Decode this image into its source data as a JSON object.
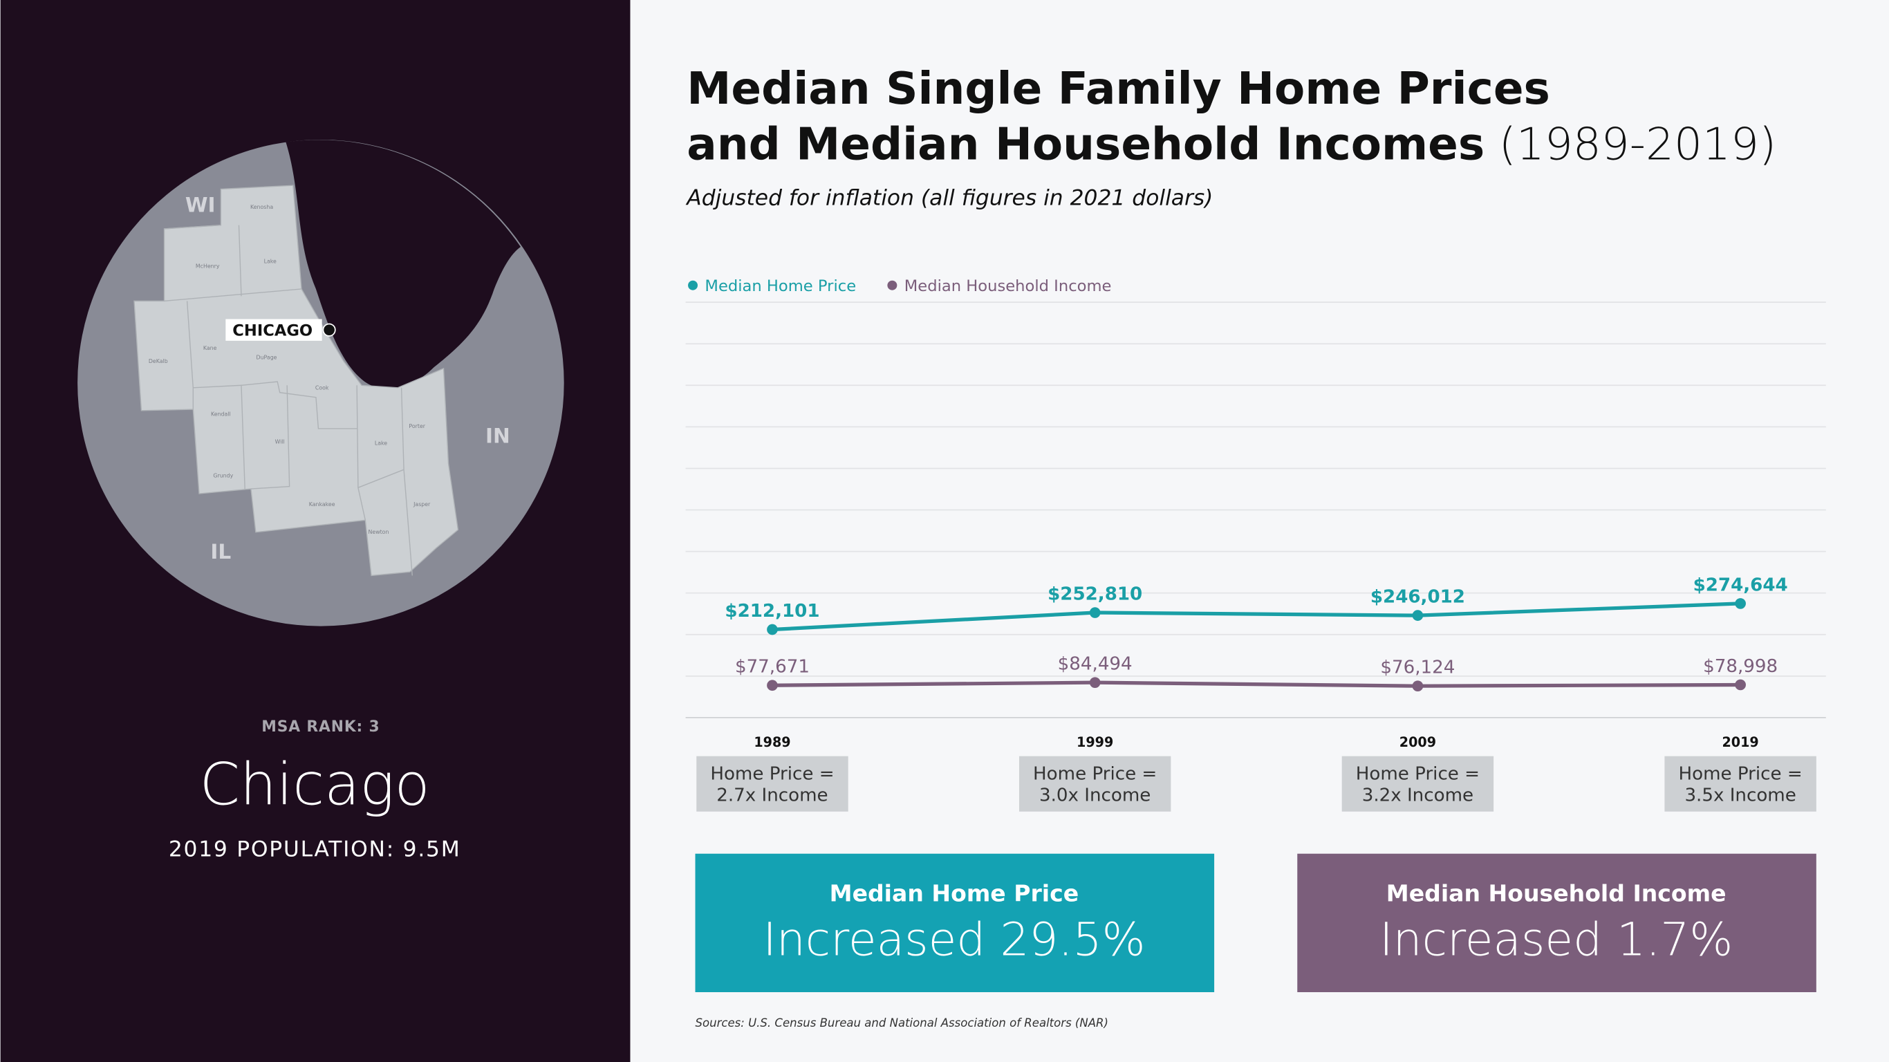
{
  "sidebar": {
    "map_labels": {
      "states": [
        "WI",
        "IL",
        "IN"
      ],
      "city": "CHICAGO",
      "counties": [
        "Kenosha",
        "McHenry",
        "Lake",
        "Kane",
        "DeKalb",
        "DuPage",
        "Cook",
        "Kendall",
        "Will",
        "Grundy",
        "Kankakee",
        "Lake",
        "Porter",
        "Jasper",
        "Newton"
      ]
    },
    "rank": "MSA RANK: 3",
    "city_name": "Chicago",
    "population": "2019 POPULATION: 9.5M"
  },
  "chart_data": {
    "type": "line",
    "title": [
      "Median Single Family Home Prices",
      "and Median Household Incomes"
    ],
    "title_suffix": "(1989-2019)",
    "subtitle": "Adjusted for inflation (all figures in 2021 dollars)",
    "categories": [
      "1989",
      "1999",
      "2009",
      "2019"
    ],
    "series": [
      {
        "name": "Median Home Price",
        "color": "#1a9fa6",
        "values": [
          212101,
          252810,
          246012,
          274644
        ],
        "value_labels": [
          "$212,101",
          "$252,810",
          "$246,012",
          "$274,644"
        ]
      },
      {
        "name": "Median Household Income",
        "color": "#7b5e7b",
        "values": [
          77671,
          84494,
          76124,
          78998
        ],
        "value_labels": [
          "$77,671",
          "$84,494",
          "$76,124",
          "$78,998"
        ]
      }
    ],
    "ylim": [
      0,
      1000000
    ],
    "yticks": [
      0,
      100000,
      200000,
      300000,
      400000,
      500000,
      600000,
      700000,
      800000,
      900000,
      1000000
    ],
    "grid": true,
    "legend": "top-left",
    "ratio_labels": [
      [
        "Home Price =",
        "2.7x Income"
      ],
      [
        "Home Price =",
        "3.0x Income"
      ],
      [
        "Home Price =",
        "3.2x Income"
      ],
      [
        "Home Price =",
        "3.5x Income"
      ]
    ],
    "summary": [
      {
        "heading": "Median Home Price",
        "text": "Increased 29.5%",
        "color": "#14a2b3"
      },
      {
        "heading": "Median Household Income",
        "text": "Increased 1.7%",
        "color": "#7b5e7b"
      }
    ],
    "source": "Sources: U.S. Census Bureau and National Association of Realtors (NAR)"
  }
}
